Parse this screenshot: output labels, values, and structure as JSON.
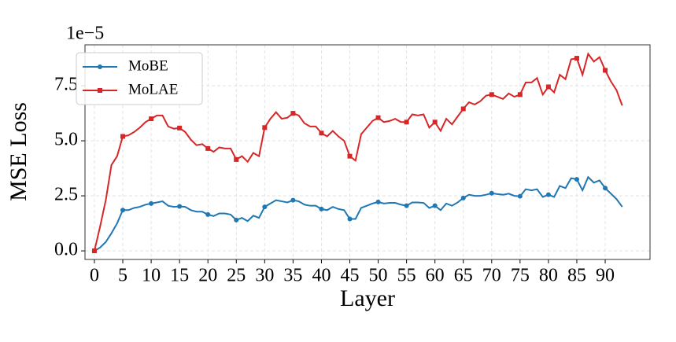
{
  "chart_data": {
    "type": "line",
    "xlabel": "Layer",
    "ylabel": "MSE Loss",
    "y_offset_text": "1e−5",
    "x": [
      0,
      1,
      2,
      3,
      4,
      5,
      6,
      7,
      8,
      9,
      10,
      11,
      12,
      13,
      14,
      15,
      16,
      17,
      18,
      19,
      20,
      21,
      22,
      23,
      24,
      25,
      26,
      27,
      28,
      29,
      30,
      31,
      32,
      33,
      34,
      35,
      36,
      37,
      38,
      39,
      40,
      41,
      42,
      43,
      44,
      45,
      46,
      47,
      48,
      49,
      50,
      51,
      52,
      53,
      54,
      55,
      56,
      57,
      58,
      59,
      60,
      61,
      62,
      63,
      64,
      65,
      66,
      67,
      68,
      69,
      70,
      71,
      72,
      73,
      74,
      75,
      76,
      77,
      78,
      79,
      80,
      81,
      82,
      83,
      84,
      85,
      86,
      87,
      88,
      89,
      90,
      91,
      92,
      93
    ],
    "series": [
      {
        "name": "MoBE",
        "color": "#1f77b4",
        "marker": "circle",
        "values": [
          0,
          0.15,
          0.4,
          0.8,
          1.25,
          1.85,
          1.85,
          1.95,
          2.0,
          2.1,
          2.15,
          2.2,
          2.25,
          2.05,
          2.0,
          2.02,
          2.0,
          1.85,
          1.78,
          1.78,
          1.65,
          1.58,
          1.7,
          1.7,
          1.65,
          1.4,
          1.5,
          1.35,
          1.6,
          1.5,
          2.0,
          2.15,
          2.3,
          2.25,
          2.2,
          2.3,
          2.25,
          2.1,
          2.05,
          2.05,
          1.9,
          1.85,
          2.0,
          1.9,
          1.85,
          1.45,
          1.45,
          1.95,
          2.05,
          2.15,
          2.22,
          2.15,
          2.18,
          2.18,
          2.1,
          2.05,
          2.2,
          2.2,
          2.18,
          1.95,
          2.05,
          1.85,
          2.15,
          2.05,
          2.2,
          2.4,
          2.55,
          2.5,
          2.5,
          2.55,
          2.62,
          2.58,
          2.55,
          2.6,
          2.5,
          2.48,
          2.8,
          2.75,
          2.8,
          2.45,
          2.55,
          2.45,
          2.95,
          2.85,
          3.3,
          3.25,
          2.75,
          3.35,
          3.1,
          3.2,
          2.85,
          2.6,
          2.35,
          2.0
        ]
      },
      {
        "name": "MoLAE",
        "color": "#d62728",
        "marker": "square",
        "values": [
          0,
          1.1,
          2.3,
          3.9,
          4.3,
          5.2,
          5.25,
          5.4,
          5.6,
          5.85,
          6.0,
          6.15,
          6.15,
          5.65,
          5.55,
          5.58,
          5.4,
          5.05,
          4.8,
          4.85,
          4.65,
          4.5,
          4.7,
          4.65,
          4.65,
          4.15,
          4.3,
          4.05,
          4.45,
          4.3,
          5.6,
          6.0,
          6.3,
          6.0,
          6.05,
          6.25,
          6.15,
          5.8,
          5.65,
          5.65,
          5.35,
          5.2,
          5.45,
          5.2,
          5.0,
          4.3,
          4.1,
          5.3,
          5.6,
          5.9,
          6.05,
          5.85,
          5.9,
          6.0,
          5.85,
          5.85,
          6.2,
          6.15,
          6.2,
          5.6,
          5.85,
          5.45,
          6.0,
          5.75,
          6.1,
          6.45,
          6.75,
          6.65,
          6.8,
          7.05,
          7.1,
          7.0,
          6.9,
          7.15,
          7.0,
          7.1,
          7.65,
          7.65,
          7.85,
          7.1,
          7.45,
          7.2,
          8.0,
          7.8,
          8.7,
          8.75,
          8.0,
          8.95,
          8.6,
          8.8,
          8.2,
          7.7,
          7.3,
          6.6
        ]
      }
    ],
    "markevery": 5,
    "xlim": [
      -1.66,
      97.9
    ],
    "xticks": [
      0,
      5,
      10,
      15,
      20,
      25,
      30,
      35,
      40,
      45,
      50,
      55,
      60,
      65,
      70,
      75,
      80,
      85,
      90
    ],
    "ylim": [
      -0.39,
      9.36
    ],
    "yticks": [
      {
        "value": 0,
        "label": "0.0"
      },
      2.5,
      {
        "value": 5,
        "label": "5.0"
      },
      7.5
    ],
    "grid": true,
    "legend": "upper left"
  }
}
